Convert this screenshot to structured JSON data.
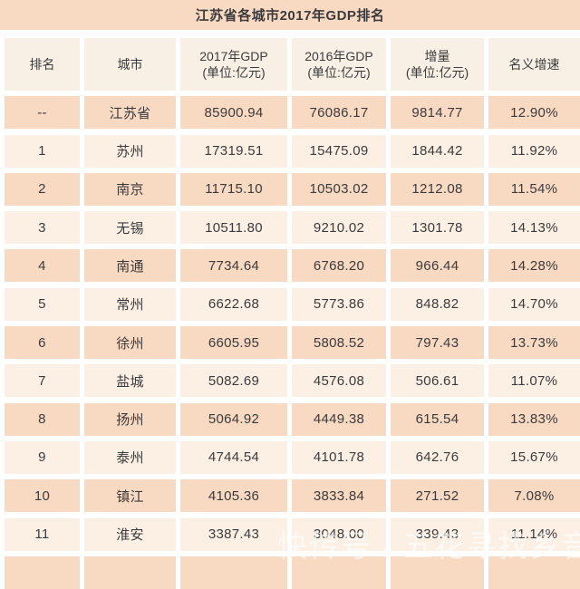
{
  "title": "江苏省各城市2017年GDP排名",
  "watermark": "快传号 / 五花寻找乡音",
  "colors": {
    "title_bg": "#f8d9c1",
    "header_bg": "#f9f0e5",
    "row_dark": "#f8d9c1",
    "row_light": "#fcf0e4",
    "separator": "#ffffff",
    "text": "#3b3b3d",
    "watermark": "rgba(255,255,255,0.62)"
  },
  "chart_data": {
    "type": "table",
    "title": "江苏省各城市2017年GDP排名",
    "columns": [
      "排名",
      "城市",
      "2017年GDP(单位:亿元)",
      "2016年GDP(单位:亿元)",
      "增量(单位:亿元)",
      "名义增速"
    ],
    "header_lines": [
      {
        "line1": "排名",
        "line2": ""
      },
      {
        "line1": "城市",
        "line2": ""
      },
      {
        "line1": "2017年GDP",
        "line2": "(单位:亿元)"
      },
      {
        "line1": "2016年GDP",
        "line2": "(单位:亿元)"
      },
      {
        "line1": "增量",
        "line2": "(单位:亿元)"
      },
      {
        "line1": "名义增速",
        "line2": ""
      }
    ],
    "rows": [
      [
        "--",
        "江苏省",
        "85900.94",
        "76086.17",
        "9814.77",
        "12.90%"
      ],
      [
        "1",
        "苏州",
        "17319.51",
        "15475.09",
        "1844.42",
        "11.92%"
      ],
      [
        "2",
        "南京",
        "11715.10",
        "10503.02",
        "1212.08",
        "11.54%"
      ],
      [
        "3",
        "无锡",
        "10511.80",
        "9210.02",
        "1301.78",
        "14.13%"
      ],
      [
        "4",
        "南通",
        "7734.64",
        "6768.20",
        "966.44",
        "14.28%"
      ],
      [
        "5",
        "常州",
        "6622.68",
        "5773.86",
        "848.82",
        "14.70%"
      ],
      [
        "6",
        "徐州",
        "6605.95",
        "5808.52",
        "797.43",
        "13.73%"
      ],
      [
        "7",
        "盐城",
        "5082.69",
        "4576.08",
        "506.61",
        "11.07%"
      ],
      [
        "8",
        "扬州",
        "5064.92",
        "4449.38",
        "615.54",
        "13.83%"
      ],
      [
        "9",
        "泰州",
        "4744.54",
        "4101.78",
        "642.76",
        "15.67%"
      ],
      [
        "10",
        "镇江",
        "4105.36",
        "3833.84",
        "271.52",
        "7.08%"
      ],
      [
        "11",
        "淮安",
        "3387.43",
        "3048.00",
        "339.43",
        "11.14%"
      ]
    ]
  }
}
